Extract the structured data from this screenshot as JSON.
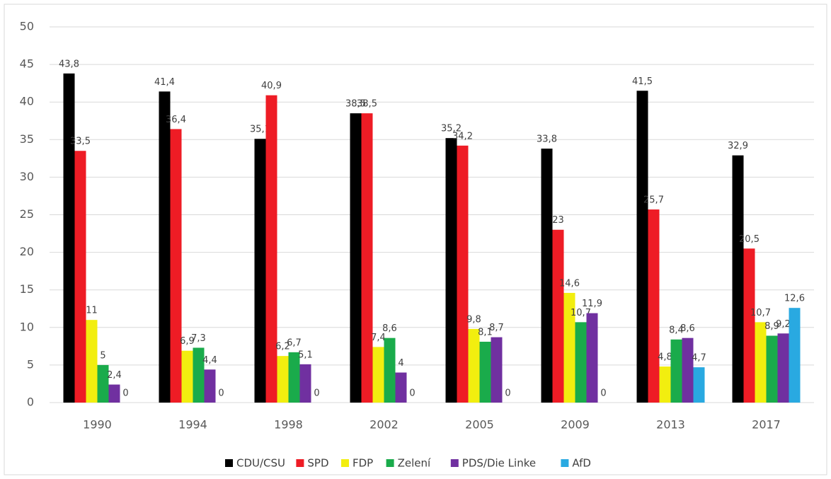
{
  "chart_data": {
    "type": "bar",
    "categories": [
      "1990",
      "1994",
      "1998",
      "2002",
      "2005",
      "2009",
      "2013",
      "2017"
    ],
    "series": [
      {
        "name": "CDU/CSU",
        "color": "#000000",
        "values": [
          43.8,
          41.4,
          35.1,
          38.5,
          35.2,
          33.8,
          41.5,
          32.9
        ],
        "value_labels": [
          "43,8",
          "41,4",
          "35,1",
          "38,5",
          "35,2",
          "33,8",
          "41,5",
          "32,9"
        ]
      },
      {
        "name": "SPD",
        "color": "#ee1c25",
        "values": [
          33.5,
          36.4,
          40.9,
          38.5,
          34.2,
          23,
          25.7,
          20.5
        ],
        "value_labels": [
          "33,5",
          "36,4",
          "40,9",
          "38,5",
          "34,2",
          "23",
          "25,7",
          "20,5"
        ]
      },
      {
        "name": "FDP",
        "color": "#f2ee0f",
        "values": [
          11,
          6.9,
          6.2,
          7.4,
          9.8,
          14.6,
          4.8,
          10.7
        ],
        "value_labels": [
          "11",
          "6,9",
          "6,2",
          "7,4",
          "9,8",
          "14,6",
          "4,8",
          "10,7"
        ]
      },
      {
        "name": "Zelení",
        "color": "#1aab4b",
        "values": [
          5,
          7.3,
          6.7,
          8.6,
          8.1,
          10.7,
          8.4,
          8.9
        ],
        "value_labels": [
          "5",
          "7,3",
          "6,7",
          "8,6",
          "8,1",
          "10,7",
          "8,4",
          "8,9"
        ]
      },
      {
        "name": "PDS/Die Linke",
        "color": "#7030a0",
        "values": [
          2.4,
          4.4,
          5.1,
          4,
          8.7,
          11.9,
          8.6,
          9.2
        ],
        "value_labels": [
          "2,4",
          "4,4",
          "5,1",
          "4",
          "8,7",
          "11,9",
          "8,6",
          "9,2"
        ]
      },
      {
        "name": "AfD",
        "color": "#29a9e1",
        "values": [
          0,
          0,
          0,
          0,
          0,
          0,
          4.7,
          12.6
        ],
        "value_labels": [
          "0",
          "0",
          "0",
          "0",
          "0",
          "0",
          "4,7",
          "12,6"
        ]
      }
    ],
    "ylim": [
      0,
      50
    ],
    "yticks": [
      0,
      5,
      10,
      15,
      20,
      25,
      30,
      35,
      40,
      45,
      50
    ],
    "grid": true,
    "legend": "bottom"
  }
}
